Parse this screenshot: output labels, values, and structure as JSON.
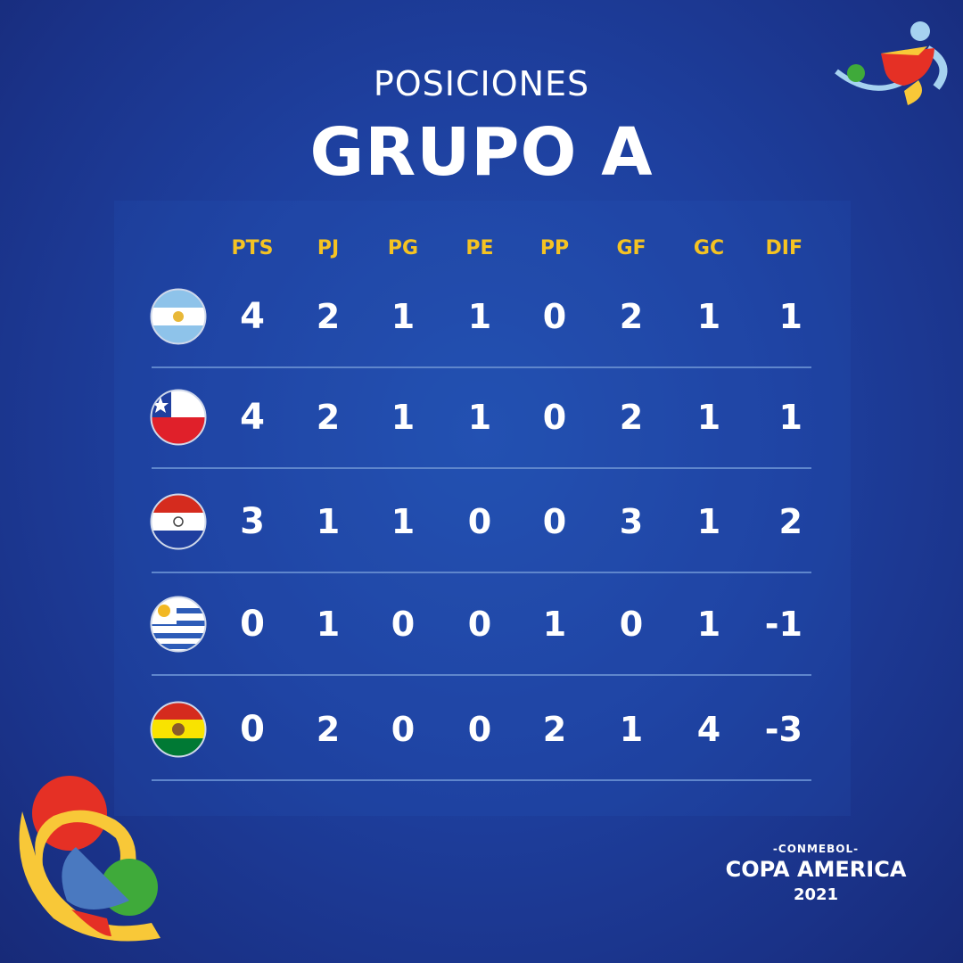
{
  "header": {
    "subtitle": "POSICIONES",
    "title": "GRUPO A"
  },
  "columns": [
    "PTS",
    "PJ",
    "PG",
    "PE",
    "PP",
    "GF",
    "GC",
    "DIF"
  ],
  "rows": [
    {
      "team": "Argentina",
      "flag": "argentina-flag",
      "values": [
        "4",
        "2",
        "1",
        "1",
        "0",
        "2",
        "1",
        "1"
      ]
    },
    {
      "team": "Chile",
      "flag": "chile-flag",
      "values": [
        "4",
        "2",
        "1",
        "1",
        "0",
        "2",
        "1",
        "1"
      ]
    },
    {
      "team": "Paraguay",
      "flag": "paraguay-flag",
      "values": [
        "3",
        "1",
        "1",
        "0",
        "0",
        "3",
        "1",
        "2"
      ]
    },
    {
      "team": "Uruguay",
      "flag": "uruguay-flag",
      "values": [
        "0",
        "1",
        "0",
        "0",
        "1",
        "0",
        "1",
        "-1"
      ]
    },
    {
      "team": "Bolivia",
      "flag": "bolivia-flag",
      "values": [
        "0",
        "2",
        "0",
        "0",
        "2",
        "1",
        "4",
        "-3"
      ]
    }
  ],
  "brand": {
    "org": "-CONMEBOL-",
    "name": "COPA AMERICA",
    "year": "2021"
  },
  "colors": {
    "background": "#1e409f",
    "header_text": "#f5c322",
    "divider": "#5f86cc"
  }
}
